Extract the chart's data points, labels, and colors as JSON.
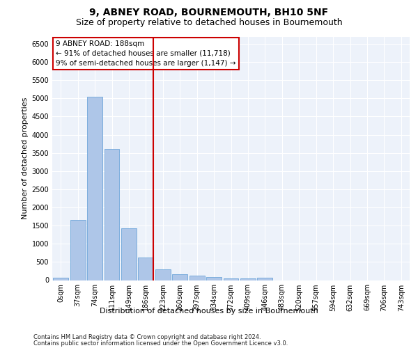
{
  "title_line1": "9, ABNEY ROAD, BOURNEMOUTH, BH10 5NF",
  "title_line2": "Size of property relative to detached houses in Bournemouth",
  "xlabel": "Distribution of detached houses by size in Bournemouth",
  "ylabel": "Number of detached properties",
  "footnote1": "Contains HM Land Registry data © Crown copyright and database right 2024.",
  "footnote2": "Contains public sector information licensed under the Open Government Licence v3.0.",
  "annotation_title": "9 ABNEY ROAD: 188sqm",
  "annotation_line1": "← 91% of detached houses are smaller (11,718)",
  "annotation_line2": "9% of semi-detached houses are larger (1,147) →",
  "bar_categories": [
    "0sqm",
    "37sqm",
    "74sqm",
    "111sqm",
    "149sqm",
    "186sqm",
    "223sqm",
    "260sqm",
    "297sqm",
    "334sqm",
    "372sqm",
    "409sqm",
    "446sqm",
    "483sqm",
    "520sqm",
    "557sqm",
    "594sqm",
    "632sqm",
    "669sqm",
    "706sqm",
    "743sqm"
  ],
  "bar_values": [
    75,
    1650,
    5050,
    3600,
    1420,
    620,
    300,
    170,
    125,
    90,
    55,
    55,
    60,
    0,
    0,
    0,
    0,
    0,
    0,
    0,
    0
  ],
  "bar_color": "#aec6e8",
  "bar_edge_color": "#5b9bd5",
  "vline_color": "#cc0000",
  "vline_x": 5.45,
  "ylim": [
    0,
    6700
  ],
  "yticks": [
    0,
    500,
    1000,
    1500,
    2000,
    2500,
    3000,
    3500,
    4000,
    4500,
    5000,
    5500,
    6000,
    6500
  ],
  "background_color": "#edf2fa",
  "grid_color": "#ffffff",
  "title1_fontsize": 10,
  "title2_fontsize": 9,
  "ylabel_fontsize": 8,
  "xlabel_fontsize": 8,
  "tick_fontsize": 7,
  "footnote_fontsize": 6,
  "annotation_fontsize": 7.5
}
